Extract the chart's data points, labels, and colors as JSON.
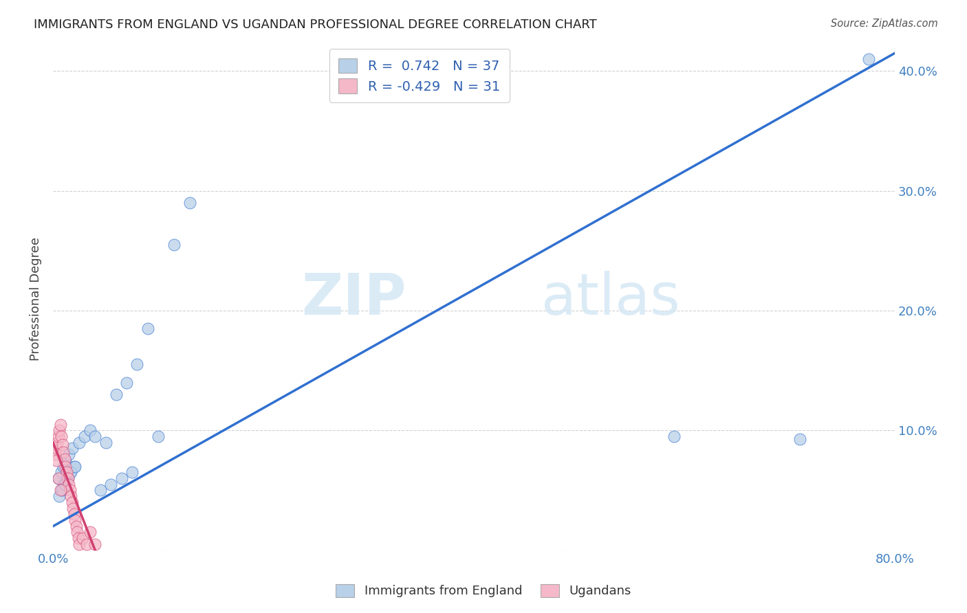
{
  "title": "IMMIGRANTS FROM ENGLAND VS UGANDAN PROFESSIONAL DEGREE CORRELATION CHART",
  "source": "Source: ZipAtlas.com",
  "ylabel": "Professional Degree",
  "xlim": [
    0.0,
    0.8
  ],
  "ylim": [
    0.0,
    0.42
  ],
  "grid_color": "#cccccc",
  "blue_dot_color": "#b8d0e8",
  "pink_dot_color": "#f5b8c8",
  "line_blue": "#3070d0",
  "line_pink": "#d04070",
  "legend_r_blue": "0.742",
  "legend_n_blue": "37",
  "legend_r_pink": "-0.429",
  "legend_n_pink": "31",
  "watermark_zip": "ZIP",
  "watermark_atlas": "atlas",
  "legend_label_blue": "Immigrants from England",
  "legend_label_pink": "Ugandans",
  "blue_scatter_x": [
    0.005,
    0.008,
    0.01,
    0.012,
    0.015,
    0.018,
    0.01,
    0.013,
    0.016,
    0.02,
    0.008,
    0.011,
    0.014,
    0.017,
    0.021,
    0.006,
    0.009,
    0.012,
    0.025,
    0.03,
    0.035,
    0.04,
    0.05,
    0.06,
    0.07,
    0.08,
    0.09,
    0.045,
    0.055,
    0.065,
    0.075,
    0.1,
    0.115,
    0.13,
    0.59,
    0.71,
    0.775
  ],
  "blue_scatter_y": [
    0.06,
    0.065,
    0.07,
    0.075,
    0.08,
    0.085,
    0.055,
    0.06,
    0.065,
    0.07,
    0.05,
    0.055,
    0.06,
    0.065,
    0.07,
    0.045,
    0.05,
    0.055,
    0.09,
    0.095,
    0.1,
    0.095,
    0.09,
    0.13,
    0.14,
    0.155,
    0.185,
    0.05,
    0.055,
    0.06,
    0.065,
    0.095,
    0.255,
    0.29,
    0.095,
    0.093,
    0.41
  ],
  "pink_scatter_x": [
    0.002,
    0.003,
    0.004,
    0.005,
    0.006,
    0.007,
    0.008,
    0.009,
    0.01,
    0.011,
    0.012,
    0.013,
    0.014,
    0.015,
    0.016,
    0.017,
    0.018,
    0.019,
    0.02,
    0.021,
    0.022,
    0.023,
    0.024,
    0.025,
    0.003,
    0.005,
    0.007,
    0.028,
    0.032,
    0.035,
    0.04
  ],
  "pink_scatter_y": [
    0.08,
    0.085,
    0.09,
    0.095,
    0.1,
    0.105,
    0.095,
    0.088,
    0.082,
    0.076,
    0.07,
    0.065,
    0.06,
    0.055,
    0.05,
    0.045,
    0.04,
    0.035,
    0.03,
    0.025,
    0.02,
    0.015,
    0.01,
    0.005,
    0.075,
    0.06,
    0.05,
    0.01,
    0.005,
    0.015,
    0.005
  ],
  "blue_line_x0": 0.0,
  "blue_line_y0": 0.02,
  "blue_line_x1": 0.8,
  "blue_line_y1": 0.415,
  "pink_line_x0": 0.0,
  "pink_line_y0": 0.09,
  "pink_line_x1": 0.04,
  "pink_line_y1": 0.0
}
